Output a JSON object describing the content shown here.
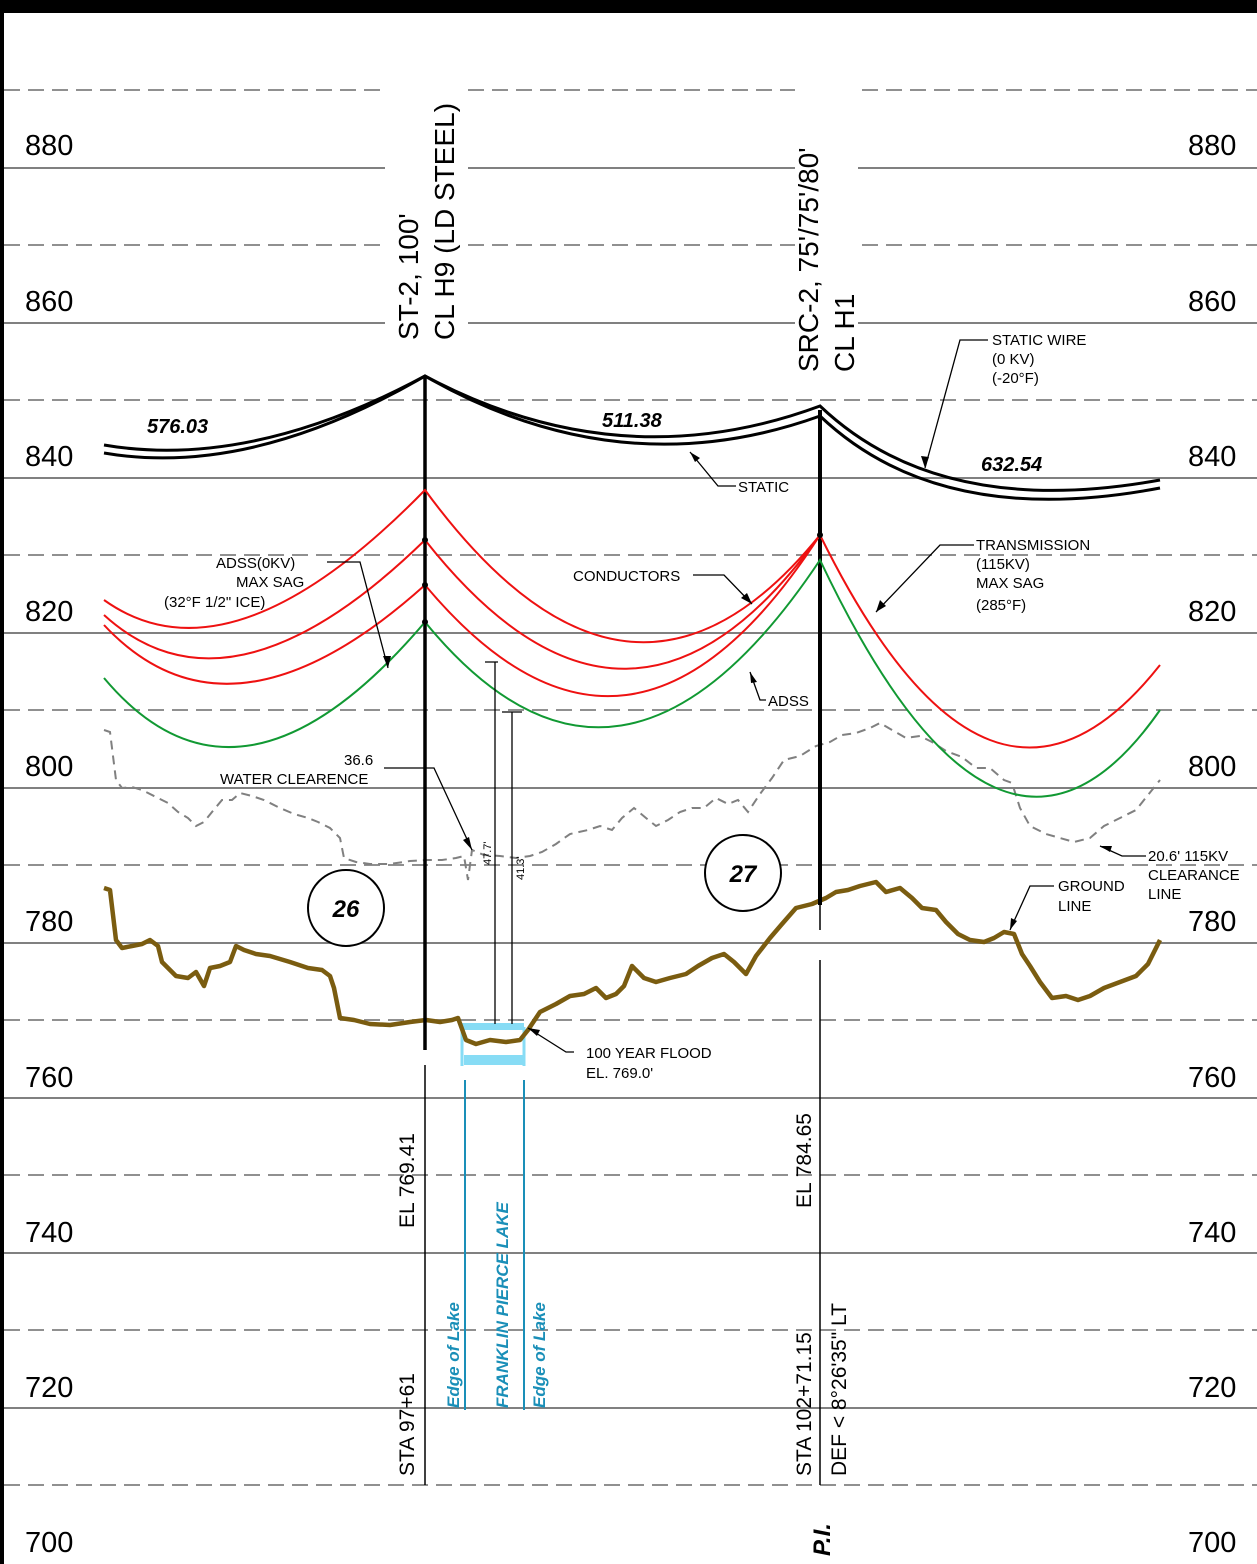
{
  "elevations": [
    "880",
    "860",
    "840",
    "820",
    "800",
    "780",
    "760",
    "740",
    "720",
    "700"
  ],
  "structures": {
    "left": {
      "type_label": "ST-2, 100'",
      "cl_label": "CL H9 (LD STEEL)",
      "el_label": "EL 769.41",
      "sta_label": "STA 97+61",
      "number": "26"
    },
    "right": {
      "type_label": "SRC-2, 75'/75'/80'",
      "cl_label": "CL H1",
      "el_label": "EL 784.65",
      "sta_label": "STA 102+71.15",
      "def_label": "DEF < 8°26'35\" LT",
      "pi_label": "P.I.",
      "number": "27"
    }
  },
  "spans": [
    "576.03",
    "511.38",
    "632.54"
  ],
  "labels": {
    "static_wire": [
      "STATIC WIRE",
      "(0 KV)",
      "(-20°F)"
    ],
    "static": "STATIC",
    "transmission": [
      "TRANSMISSION",
      "(115KV)",
      "MAX SAG",
      "(285°F)"
    ],
    "conductors": "CONDUCTORS",
    "adss_note": [
      "ADSS(0KV)",
      "MAX SAG",
      "(32°F 1/2\" ICE)"
    ],
    "adss": "ADSS",
    "water_clearance": [
      "36.6",
      "WATER CLEARENCE"
    ],
    "clearance_line": [
      "20.6' 115KV",
      "CLEARANCE",
      "LINE"
    ],
    "ground_line": [
      "GROUND",
      "LINE"
    ],
    "flood": [
      "100 YEAR FLOOD",
      "EL. 769.0'"
    ],
    "dim_1": "47.7'",
    "dim_2": "41.3'"
  },
  "lake": {
    "edge_left": "Edge of Lake",
    "name": "FRANKLIN PIERCE LAKE",
    "edge_right": "Edge of Lake"
  },
  "colors": {
    "conductor": "#ee1111",
    "adss": "#119933",
    "ground": "#7a5c10",
    "water": "#87dcf5",
    "lake_text": "#1a8fb8",
    "grid": "#808080"
  }
}
